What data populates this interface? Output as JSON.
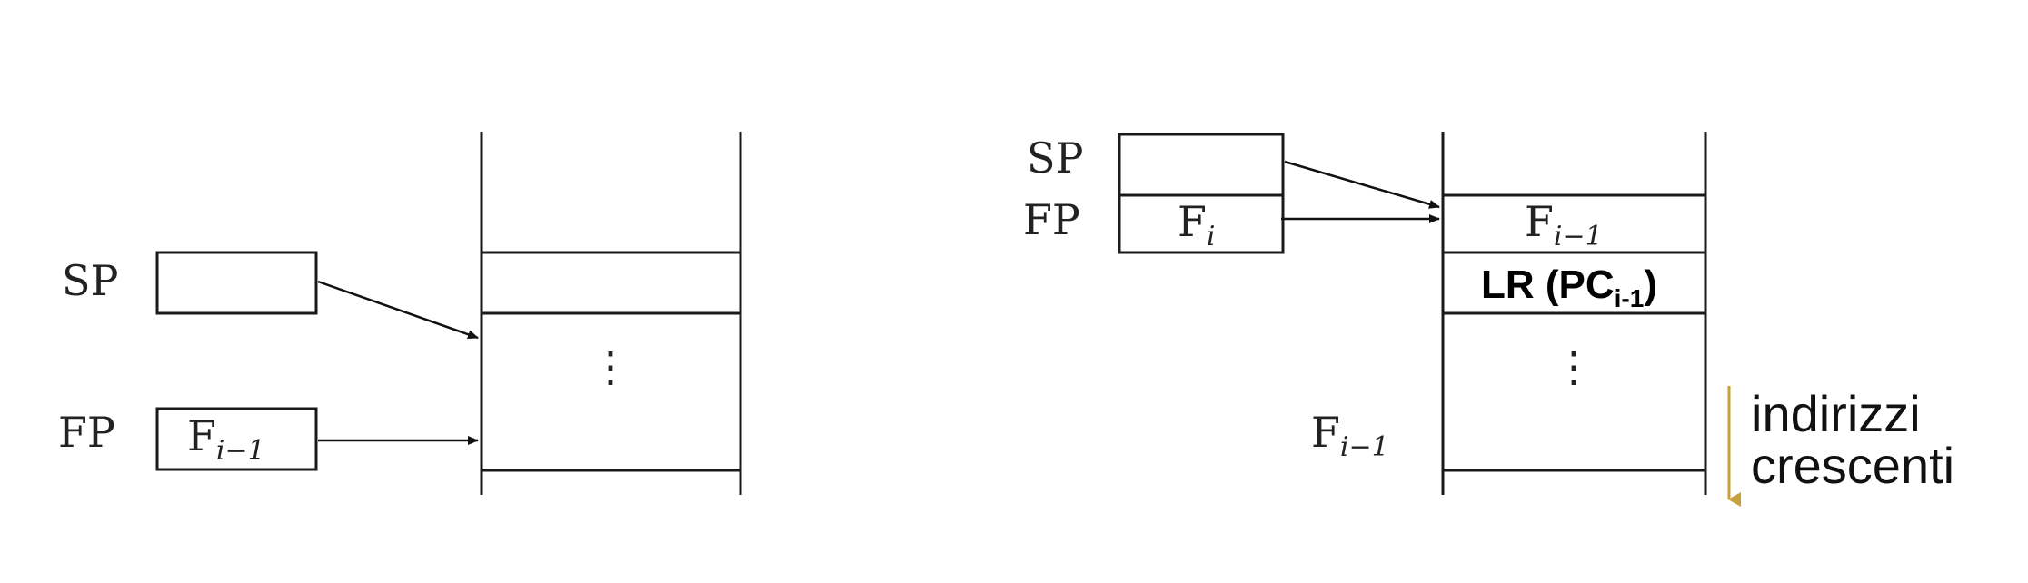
{
  "left": {
    "sp_label": "SP",
    "fp_label": "FP",
    "fp_value_base": "F",
    "fp_value_sub": "i−1",
    "ellipsis": "⋮"
  },
  "right": {
    "sp_label": "SP",
    "fp_label": "FP",
    "fp_value_base": "F",
    "fp_value_sub": "i",
    "stack_top_base": "F",
    "stack_top_sub": "i−1",
    "lr_main": "LR (PC",
    "lr_sub": "i-1",
    "lr_close": ")",
    "ellipsis": "⋮",
    "frame_label_base": "F",
    "frame_label_sub": "i−1"
  },
  "direction_note": {
    "line1": "indirizzi",
    "line2": "crescenti",
    "arrow_color": "#C8A03A"
  }
}
